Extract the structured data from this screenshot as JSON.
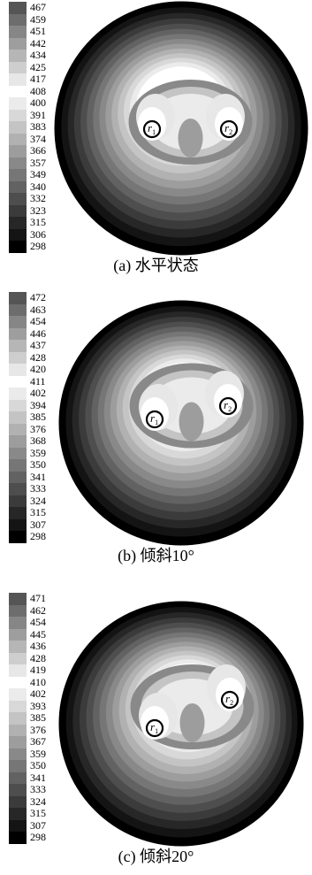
{
  "panels": [
    {
      "caption": "(a) 水平状态",
      "legend_levels": [
        "467",
        "459",
        "451",
        "442",
        "434",
        "425",
        "417",
        "408",
        "400",
        "391",
        "383",
        "374",
        "366",
        "357",
        "349",
        "340",
        "332",
        "323",
        "315",
        "306",
        "298"
      ],
      "wells": [
        {
          "main": "r",
          "sub": "1"
        },
        {
          "main": "r",
          "sub": "2"
        }
      ]
    },
    {
      "caption": "(b) 倾斜10°",
      "legend_levels": [
        "472",
        "463",
        "454",
        "446",
        "437",
        "428",
        "420",
        "411",
        "402",
        "394",
        "385",
        "376",
        "368",
        "359",
        "350",
        "341",
        "333",
        "324",
        "315",
        "307",
        "298"
      ],
      "wells": [
        {
          "main": "r",
          "sub": "1"
        },
        {
          "main": "r",
          "sub": "2"
        }
      ]
    },
    {
      "caption": "(c) 倾斜20°",
      "legend_levels": [
        "471",
        "462",
        "454",
        "445",
        "436",
        "428",
        "419",
        "410",
        "402",
        "393",
        "385",
        "376",
        "367",
        "359",
        "350",
        "341",
        "333",
        "324",
        "315",
        "307",
        "298"
      ],
      "wells": [
        {
          "main": "r",
          "sub": "1"
        },
        {
          "main": "r",
          "sub": "2"
        }
      ]
    }
  ],
  "colors": {
    "max_shade": "#555555",
    "mid_shade": "#ffffff",
    "min_shade": "#000000"
  }
}
